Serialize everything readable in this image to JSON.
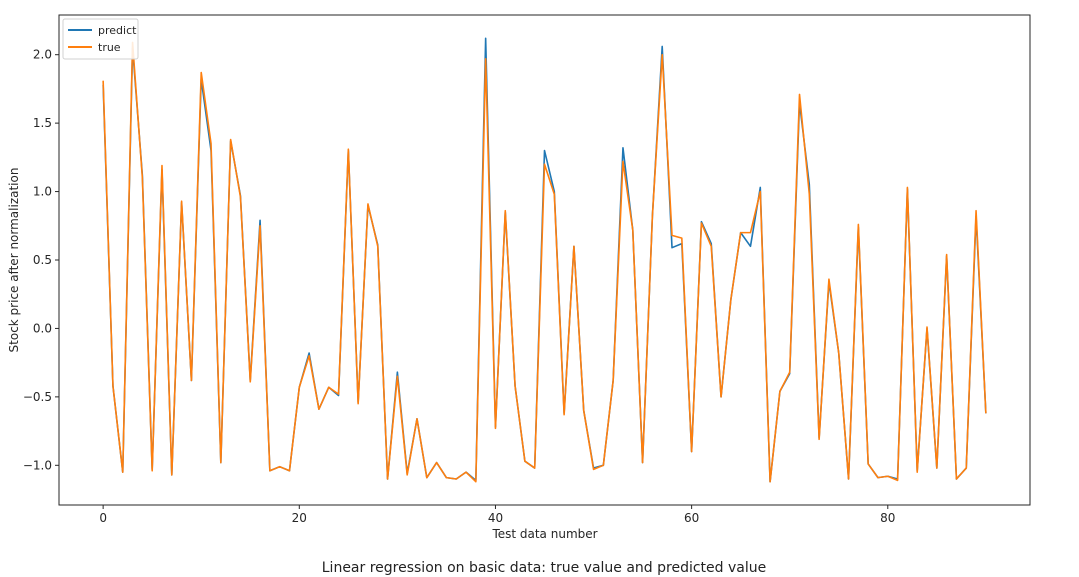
{
  "caption": "Linear regression on basic data: true value and predicted value",
  "chart_data": {
    "type": "line",
    "xlabel": "Test data number",
    "ylabel": "Stock price after normalization",
    "xlim": [
      -4.5,
      94.5
    ],
    "ylim": [
      -1.29,
      2.29
    ],
    "xticks": [
      0,
      20,
      40,
      60,
      80
    ],
    "yticks": [
      -1.0,
      -0.5,
      0.0,
      0.5,
      1.0,
      1.5,
      2.0
    ],
    "xtick_labels": [
      "0",
      "20",
      "40",
      "60",
      "80"
    ],
    "ytick_labels": [
      "−1.0",
      "−0.5",
      "0.0",
      "0.5",
      "1.0",
      "1.5",
      "2.0"
    ],
    "legend_position": "top-left",
    "grid": false,
    "series": [
      {
        "name": "predict",
        "color": "#1f77b4",
        "x": [
          0,
          1,
          2,
          3,
          4,
          5,
          6,
          7,
          8,
          9,
          10,
          11,
          12,
          13,
          14,
          15,
          16,
          17,
          18,
          19,
          20,
          21,
          22,
          23,
          24,
          25,
          26,
          27,
          28,
          29,
          30,
          31,
          32,
          33,
          34,
          35,
          36,
          37,
          38,
          39,
          40,
          41,
          42,
          43,
          44,
          45,
          46,
          47,
          48,
          49,
          50,
          51,
          52,
          53,
          54,
          55,
          56,
          57,
          58,
          59,
          60,
          61,
          62,
          63,
          64,
          65,
          66,
          67,
          68,
          69,
          70,
          71,
          72,
          73,
          74,
          75,
          76,
          77,
          78,
          79,
          80,
          81,
          82,
          83,
          84,
          85,
          86,
          87,
          88,
          89,
          90
        ],
        "values": [
          1.78,
          -0.42,
          -1.05,
          2.05,
          1.12,
          -1.03,
          1.16,
          -1.07,
          0.92,
          -0.38,
          1.82,
          1.3,
          -0.98,
          1.37,
          0.97,
          -0.38,
          0.79,
          -1.04,
          -1.01,
          -1.04,
          -0.43,
          -0.18,
          -0.59,
          -0.43,
          -0.49,
          1.3,
          -0.54,
          0.9,
          0.61,
          -1.1,
          -0.32,
          -1.06,
          -0.66,
          -1.09,
          -0.98,
          -1.09,
          -1.1,
          -1.05,
          -1.11,
          2.12,
          -0.72,
          0.85,
          -0.42,
          -0.97,
          -1.02,
          1.3,
          1.0,
          -0.62,
          0.6,
          -0.6,
          -1.02,
          -1.0,
          -0.38,
          1.32,
          0.72,
          -0.98,
          0.82,
          2.06,
          0.59,
          0.62,
          -0.9,
          0.78,
          0.62,
          -0.5,
          0.21,
          0.7,
          0.6,
          1.03,
          -1.12,
          -0.46,
          -0.33,
          1.65,
          1.05,
          -0.8,
          0.34,
          -0.18,
          -1.1,
          0.74,
          -0.99,
          -1.09,
          -1.08,
          -1.1,
          1.02,
          -1.04,
          0.0,
          -1.02,
          0.53,
          -1.1,
          -1.02,
          0.82,
          -0.62
        ]
      },
      {
        "name": "true",
        "color": "#ff7f0e",
        "x": [
          0,
          1,
          2,
          3,
          4,
          5,
          6,
          7,
          8,
          9,
          10,
          11,
          12,
          13,
          14,
          15,
          16,
          17,
          18,
          19,
          20,
          21,
          22,
          23,
          24,
          25,
          26,
          27,
          28,
          29,
          30,
          31,
          32,
          33,
          34,
          35,
          36,
          37,
          38,
          39,
          40,
          41,
          42,
          43,
          44,
          45,
          46,
          47,
          48,
          49,
          50,
          51,
          52,
          53,
          54,
          55,
          56,
          57,
          58,
          59,
          60,
          61,
          62,
          63,
          64,
          65,
          66,
          67,
          68,
          69,
          70,
          71,
          72,
          73,
          74,
          75,
          76,
          77,
          78,
          79,
          80,
          81,
          82,
          83,
          84,
          85,
          86,
          87,
          88,
          89,
          90
        ],
        "values": [
          1.81,
          -0.42,
          -1.05,
          2.09,
          1.1,
          -1.04,
          1.19,
          -1.07,
          0.93,
          -0.38,
          1.87,
          1.35,
          -0.98,
          1.38,
          0.96,
          -0.39,
          0.75,
          -1.04,
          -1.01,
          -1.04,
          -0.43,
          -0.2,
          -0.59,
          -0.43,
          -0.48,
          1.31,
          -0.55,
          0.91,
          0.6,
          -1.1,
          -0.35,
          -1.07,
          -0.66,
          -1.09,
          -0.98,
          -1.09,
          -1.1,
          -1.05,
          -1.12,
          1.97,
          -0.73,
          0.86,
          -0.42,
          -0.97,
          -1.02,
          1.2,
          0.98,
          -0.63,
          0.6,
          -0.6,
          -1.03,
          -1.0,
          -0.38,
          1.22,
          0.72,
          -0.98,
          0.82,
          2.0,
          0.68,
          0.66,
          -0.9,
          0.77,
          0.6,
          -0.5,
          0.21,
          0.7,
          0.7,
          1.0,
          -1.12,
          -0.46,
          -0.32,
          1.71,
          0.98,
          -0.81,
          0.36,
          -0.18,
          -1.1,
          0.76,
          -0.99,
          -1.09,
          -1.08,
          -1.11,
          1.03,
          -1.05,
          0.01,
          -1.02,
          0.54,
          -1.1,
          -1.02,
          0.86,
          -0.62
        ]
      }
    ]
  }
}
